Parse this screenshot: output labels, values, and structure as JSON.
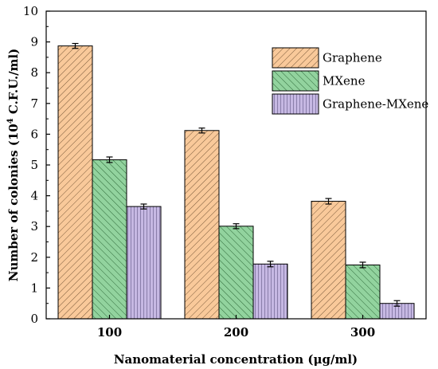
{
  "chart_data": {
    "type": "bar",
    "title": "",
    "xlabel": "Nanomaterial concentration (μg/ml)",
    "ylabel_parts": {
      "pre": "Number of colonies (10",
      "sup": "4",
      "post": " C.F.U./ml)"
    },
    "categories": [
      "100",
      "200",
      "300"
    ],
    "ylim": [
      0,
      10
    ],
    "yticks": [
      "0",
      "1",
      "2",
      "3",
      "4",
      "5",
      "6",
      "7",
      "8",
      "9",
      "10"
    ],
    "legend_position": "top-right",
    "series": [
      {
        "name": "Graphene",
        "values": [
          8.87,
          6.12,
          3.82
        ],
        "errors": [
          0.08,
          0.08,
          0.09
        ],
        "color": "#f9c99a",
        "pattern": "diagonal-right"
      },
      {
        "name": "MXene",
        "values": [
          5.17,
          3.01,
          1.75
        ],
        "errors": [
          0.09,
          0.08,
          0.09
        ],
        "color": "#92d39e",
        "pattern": "diagonal-left"
      },
      {
        "name": "Graphene-MXene",
        "values": [
          3.65,
          1.78,
          0.5
        ],
        "errors": [
          0.08,
          0.09,
          0.09
        ],
        "color": "#c6b8e3",
        "pattern": "vertical"
      }
    ]
  }
}
